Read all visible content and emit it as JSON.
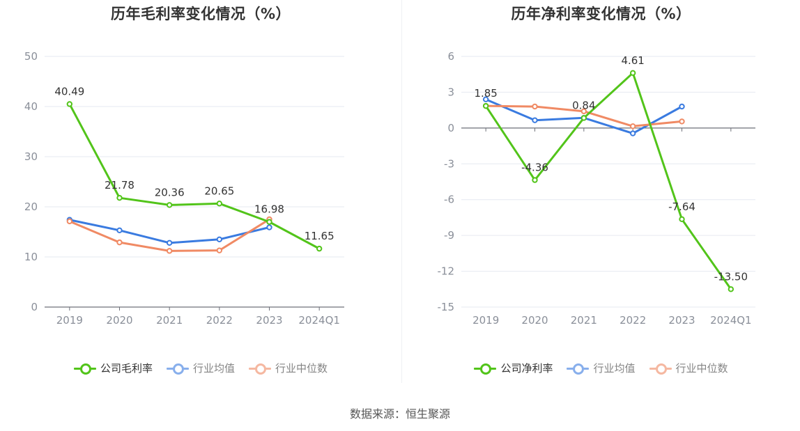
{
  "source_text": "数据来源：恒生聚源",
  "chart_data": [
    {
      "type": "line",
      "title": "历年毛利率变化情况（%）",
      "categories": [
        "2019",
        "2020",
        "2021",
        "2022",
        "2023",
        "2024Q1"
      ],
      "y_ticks": [
        "50",
        "40",
        "30",
        "20",
        "10",
        "0"
      ],
      "ylim": [
        0,
        50
      ],
      "y_tick_step": 10,
      "grid": true,
      "legend_position": "bottom",
      "series": [
        {
          "name": "公司毛利率",
          "color": "#52c41a",
          "values": [
            40.49,
            21.78,
            20.36,
            20.65,
            16.98,
            11.65
          ],
          "labels": [
            "40.49",
            "21.78",
            "20.36",
            "20.65",
            "16.98",
            "11.65"
          ]
        },
        {
          "name": "行业均值",
          "color": "#3a7be0",
          "values": [
            17.4,
            15.3,
            12.8,
            13.5,
            15.9,
            null
          ]
        },
        {
          "name": "行业中位数",
          "color": "#f08a64",
          "values": [
            17.1,
            12.9,
            11.2,
            11.3,
            17.5,
            null
          ]
        }
      ]
    },
    {
      "type": "line",
      "title": "历年净利率变化情况（%）",
      "categories": [
        "2019",
        "2020",
        "2021",
        "2022",
        "2023",
        "2024Q1"
      ],
      "y_ticks": [
        "6",
        "3",
        "0",
        "-3",
        "-6",
        "-9",
        "-12",
        "-15"
      ],
      "ylim": [
        -15,
        6
      ],
      "y_tick_step": 3,
      "grid": true,
      "legend_position": "bottom",
      "series": [
        {
          "name": "公司净利率",
          "color": "#52c41a",
          "values": [
            1.85,
            -4.36,
            0.84,
            4.61,
            -7.64,
            -13.5
          ],
          "labels": [
            "1.85",
            "-4.36",
            "0.84",
            "4.61",
            "-7.64",
            "-13.50"
          ]
        },
        {
          "name": "行业均值",
          "color": "#3a7be0",
          "values": [
            2.4,
            0.65,
            0.85,
            -0.45,
            1.8,
            null
          ]
        },
        {
          "name": "行业中位数",
          "color": "#f08a64",
          "values": [
            1.85,
            1.8,
            1.4,
            0.15,
            0.55,
            null
          ]
        }
      ]
    }
  ]
}
